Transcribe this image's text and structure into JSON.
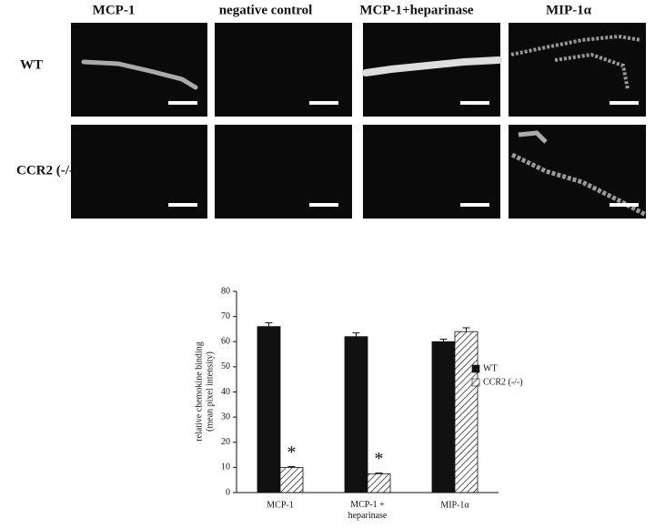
{
  "panels": {
    "columns": [
      "MCP-1",
      "negative control",
      "MCP-1+heparinase",
      "MIP-1α"
    ],
    "rows": [
      "WT",
      "CCR2 (-/-)"
    ]
  },
  "chart_data": {
    "type": "bar",
    "y_label": [
      "relative chemokine binding",
      "(mean pixel intensity)"
    ],
    "categories": [
      "MCP-1",
      "MCP-1 + heparinase",
      "MIP-1α"
    ],
    "series": [
      {
        "name": "WT",
        "color": "#111111",
        "values": [
          66,
          62,
          60
        ],
        "errors": [
          1.5,
          1.5,
          1
        ]
      },
      {
        "name": "CCR2 (-/-)",
        "color": "hatch",
        "values": [
          10,
          7.5,
          64
        ],
        "errors": [
          0.3,
          0.3,
          1.5
        ]
      }
    ],
    "annotations": [
      "*",
      "*"
    ],
    "ylim": [
      0,
      80
    ],
    "yticks": [
      0,
      10,
      20,
      30,
      40,
      50,
      60,
      70,
      80
    ],
    "grid": false,
    "legend": "right"
  }
}
